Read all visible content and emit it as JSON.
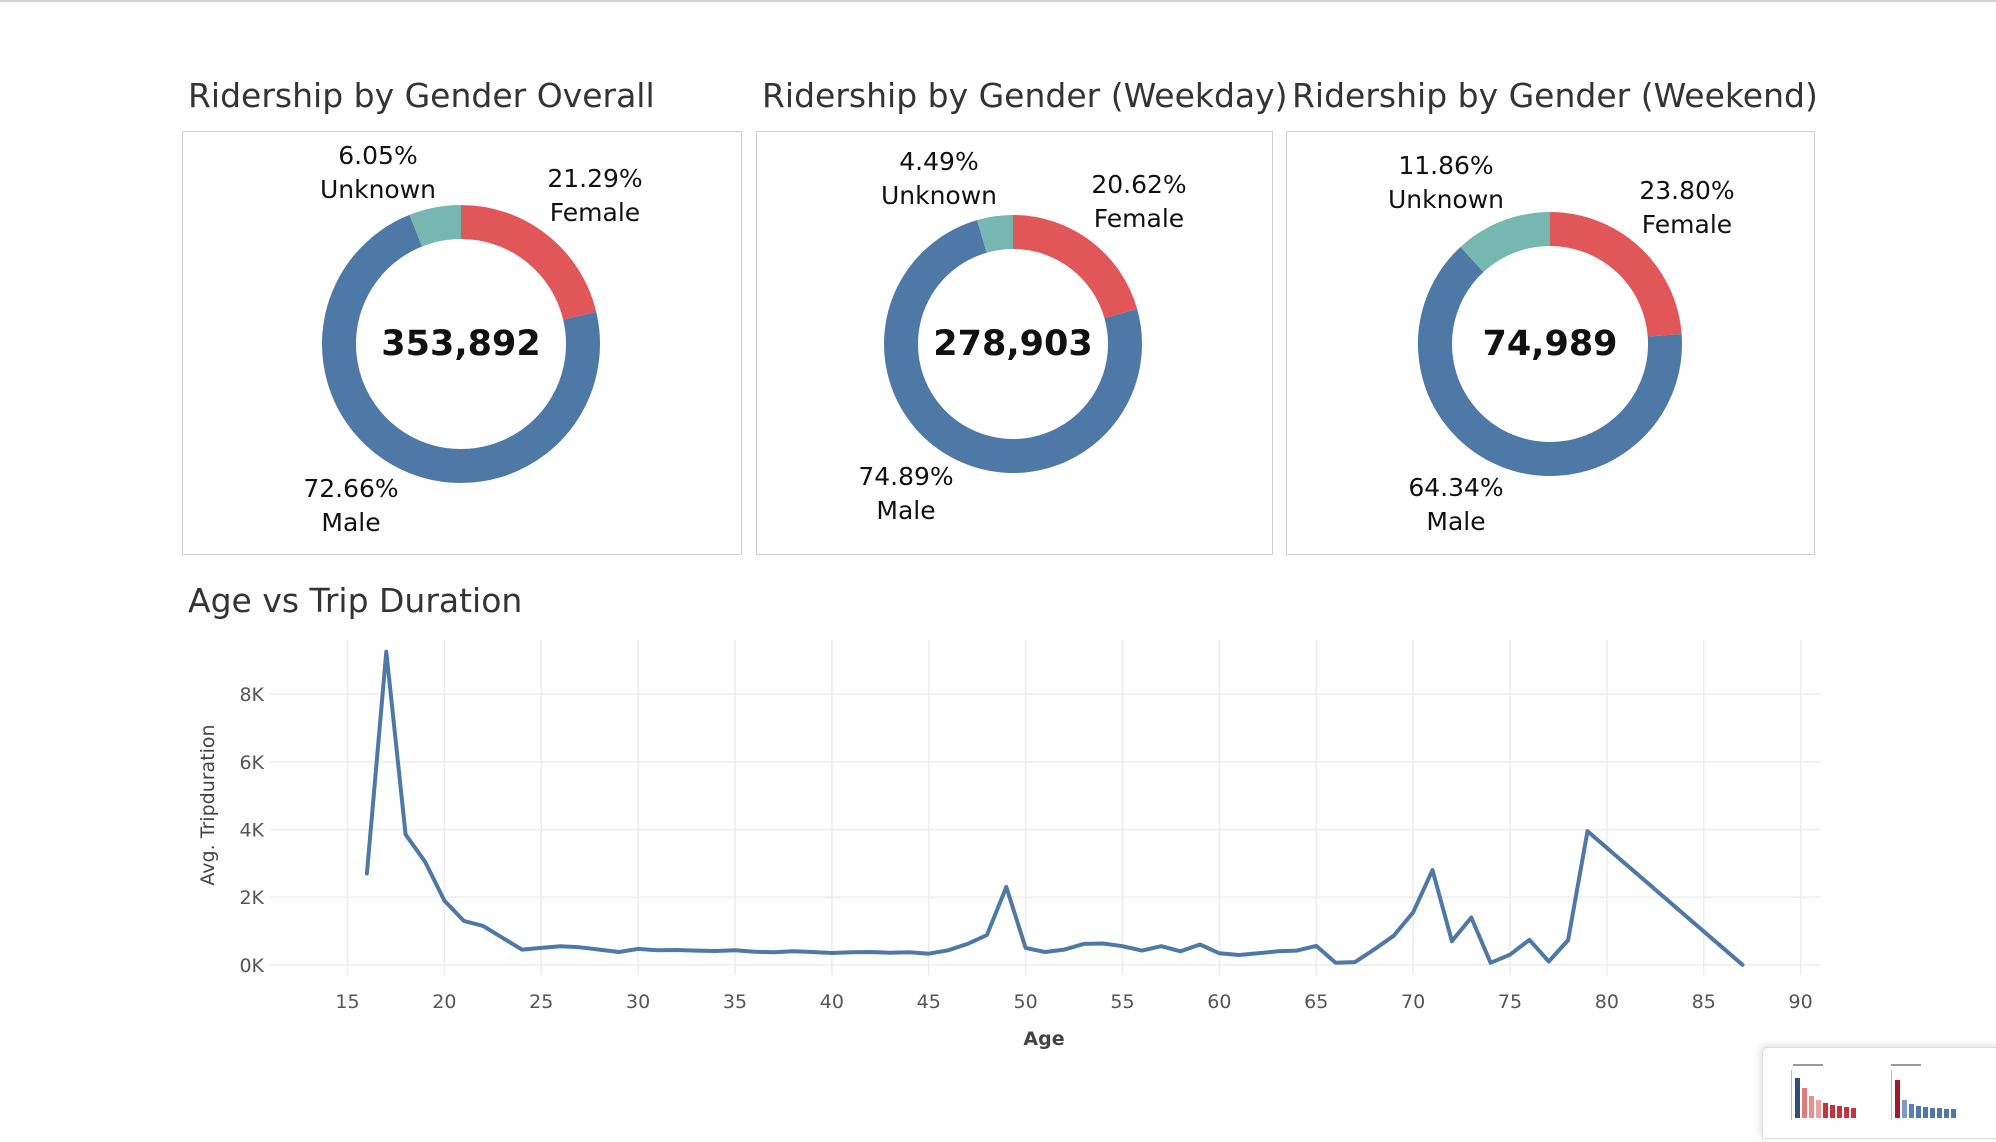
{
  "colors": {
    "male": "#4e79a7",
    "female": "#e15759",
    "unknown": "#76b7b2",
    "line": "#4e79a7",
    "grid": "#ececec",
    "axis_text": "#555555"
  },
  "chart_data": [
    {
      "type": "pie",
      "variant": "donut",
      "title": "Ridership by Gender Overall",
      "total": "353,892",
      "slices": [
        {
          "name": "Female",
          "pct": "21.29%",
          "value": 21.29,
          "color": "#e15759"
        },
        {
          "name": "Male",
          "pct": "72.66%",
          "value": 72.66,
          "color": "#4e79a7"
        },
        {
          "name": "Unknown",
          "pct": "6.05%",
          "value": 6.05,
          "color": "#76b7b2"
        }
      ]
    },
    {
      "type": "pie",
      "variant": "donut",
      "title": "Ridership by Gender (Weekday)",
      "total": "278,903",
      "slices": [
        {
          "name": "Female",
          "pct": "20.62%",
          "value": 20.62,
          "color": "#e15759"
        },
        {
          "name": "Male",
          "pct": "74.89%",
          "value": 74.89,
          "color": "#4e79a7"
        },
        {
          "name": "Unknown",
          "pct": "4.49%",
          "value": 4.49,
          "color": "#76b7b2"
        }
      ]
    },
    {
      "type": "pie",
      "variant": "donut",
      "title": "Ridership by Gender (Weekend)",
      "total": "74,989",
      "slices": [
        {
          "name": "Female",
          "pct": "23.80%",
          "value": 23.8,
          "color": "#e15759"
        },
        {
          "name": "Male",
          "pct": "64.34%",
          "value": 64.34,
          "color": "#4e79a7"
        },
        {
          "name": "Unknown",
          "pct": "11.86%",
          "value": 11.86,
          "color": "#76b7b2"
        }
      ]
    },
    {
      "type": "line",
      "title": "Age vs Trip Duration",
      "xlabel": "Age",
      "ylabel": "Avg. Tripduration",
      "xlim": [
        11,
        91
      ],
      "ylim": [
        -300,
        9600
      ],
      "x_ticks": [
        15,
        20,
        25,
        30,
        35,
        40,
        45,
        50,
        55,
        60,
        65,
        70,
        75,
        80,
        85,
        90
      ],
      "y_ticks": [
        {
          "value": 0,
          "label": "0K"
        },
        {
          "value": 2000,
          "label": "2K"
        },
        {
          "value": 4000,
          "label": "4K"
        },
        {
          "value": 6000,
          "label": "6K"
        },
        {
          "value": 8000,
          "label": "8K"
        }
      ],
      "grid": true,
      "series": [
        {
          "color": "#4e79a7",
          "x": [
            16,
            17,
            18,
            19,
            20,
            21,
            22,
            23,
            24,
            25,
            26,
            27,
            28,
            29,
            30,
            31,
            32,
            33,
            34,
            35,
            36,
            37,
            38,
            39,
            40,
            41,
            42,
            43,
            44,
            45,
            46,
            47,
            48,
            49,
            50,
            51,
            52,
            53,
            54,
            55,
            56,
            57,
            58,
            59,
            60,
            61,
            62,
            63,
            64,
            65,
            66,
            67,
            68,
            69,
            70,
            71,
            72,
            73,
            74,
            75,
            76,
            77,
            78,
            79,
            87
          ],
          "values": [
            2700,
            9250,
            3850,
            3050,
            1900,
            1300,
            1150,
            800,
            450,
            500,
            550,
            520,
            450,
            380,
            470,
            430,
            440,
            420,
            410,
            430,
            390,
            370,
            400,
            380,
            350,
            370,
            380,
            360,
            370,
            330,
            430,
            620,
            880,
            2300,
            500,
            380,
            450,
            620,
            630,
            550,
            420,
            550,
            400,
            600,
            340,
            290,
            340,
            400,
            420,
            560,
            60,
            80,
            460,
            860,
            1550,
            2800,
            700,
            1400,
            60,
            300,
            740,
            100,
            730,
            3950,
            0
          ]
        }
      ]
    }
  ]
}
